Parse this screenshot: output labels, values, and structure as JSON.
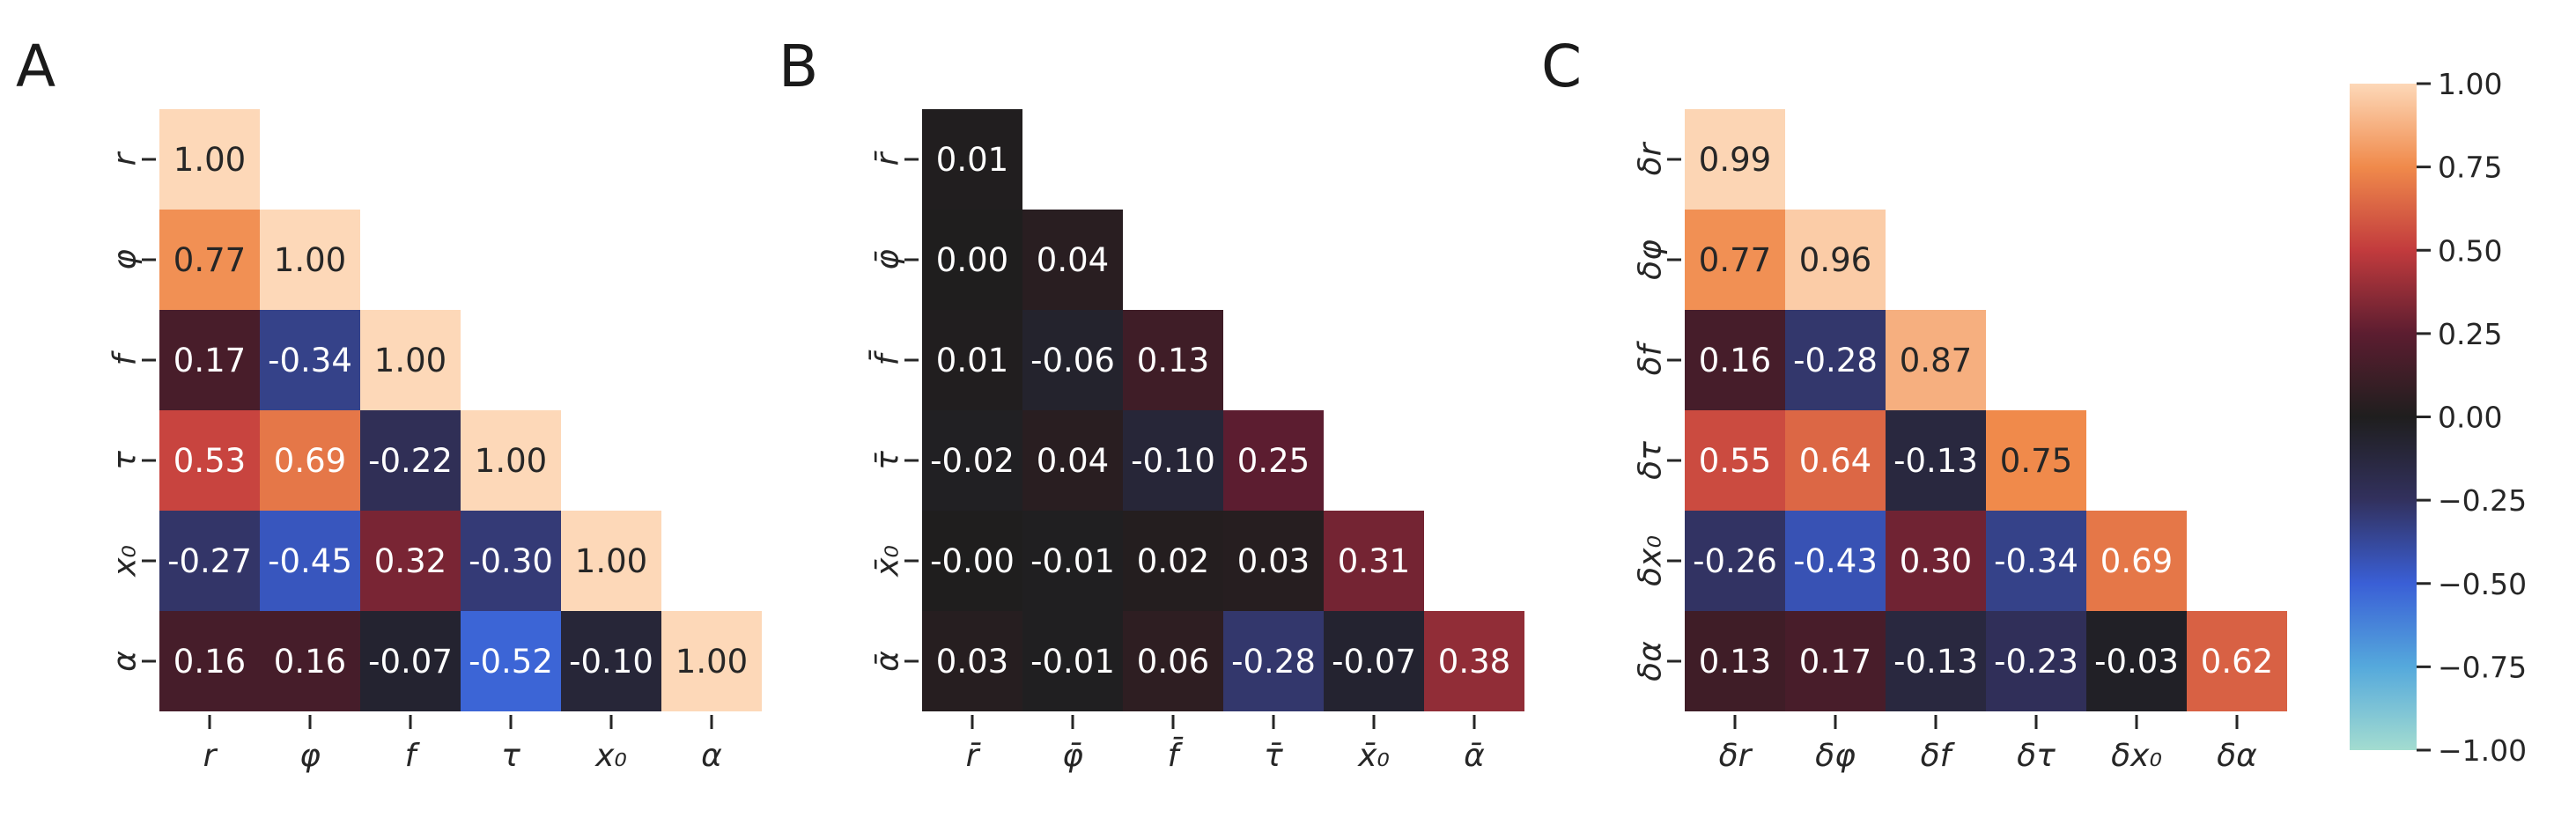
{
  "chart_data": [
    {
      "type": "heatmap",
      "panel_label": "A",
      "x_labels": [
        "r",
        "φ",
        "f",
        "τ",
        "x₀",
        "α"
      ],
      "y_labels": [
        "r",
        "φ",
        "f",
        "τ",
        "x₀",
        "α"
      ],
      "values": [
        [
          1.0
        ],
        [
          0.77,
          1.0
        ],
        [
          0.17,
          -0.34,
          1.0
        ],
        [
          0.53,
          0.69,
          -0.22,
          1.0
        ],
        [
          -0.27,
          -0.45,
          0.32,
          -0.3,
          1.0
        ],
        [
          0.16,
          0.16,
          -0.07,
          -0.52,
          -0.1,
          1.0
        ]
      ],
      "annotations": [
        [
          "1.00"
        ],
        [
          "0.77",
          "1.00"
        ],
        [
          "0.17",
          "-0.34",
          "1.00"
        ],
        [
          "0.53",
          "0.69",
          "-0.22",
          "1.00"
        ],
        [
          "-0.27",
          "-0.45",
          "0.32",
          "-0.30",
          "1.00"
        ],
        [
          "0.16",
          "0.16",
          "-0.07",
          "-0.52",
          "-0.10",
          "1.00"
        ]
      ],
      "mask": "upper-triangle"
    },
    {
      "type": "heatmap",
      "panel_label": "B",
      "x_labels": [
        "r̄",
        "φ̄",
        "f̄",
        "τ̄",
        "x̄₀",
        "ᾱ"
      ],
      "y_labels": [
        "r̄",
        "φ̄",
        "f̄",
        "τ̄",
        "x̄₀",
        "ᾱ"
      ],
      "values": [
        [
          0.01
        ],
        [
          0.0,
          0.04
        ],
        [
          0.01,
          -0.06,
          0.13
        ],
        [
          -0.02,
          0.04,
          -0.1,
          0.25
        ],
        [
          -0.0,
          -0.01,
          0.02,
          0.03,
          0.31
        ],
        [
          0.03,
          -0.01,
          0.06,
          -0.28,
          -0.07,
          0.38
        ]
      ],
      "annotations": [
        [
          "0.01"
        ],
        [
          "0.00",
          "0.04"
        ],
        [
          "0.01",
          "-0.06",
          "0.13"
        ],
        [
          "-0.02",
          "0.04",
          "-0.10",
          "0.25"
        ],
        [
          "-0.00",
          "-0.01",
          "0.02",
          "0.03",
          "0.31"
        ],
        [
          "0.03",
          "-0.01",
          "0.06",
          "-0.28",
          "-0.07",
          "0.38"
        ]
      ],
      "mask": "upper-triangle"
    },
    {
      "type": "heatmap",
      "panel_label": "C",
      "x_labels": [
        "δr",
        "δφ",
        "δf",
        "δτ",
        "δx₀",
        "δα"
      ],
      "y_labels": [
        "δr",
        "δφ",
        "δf",
        "δτ",
        "δx₀",
        "δα"
      ],
      "values": [
        [
          0.99
        ],
        [
          0.77,
          0.96
        ],
        [
          0.16,
          -0.28,
          0.87
        ],
        [
          0.55,
          0.64,
          -0.13,
          0.75
        ],
        [
          -0.26,
          -0.43,
          0.3,
          -0.34,
          0.69
        ],
        [
          0.13,
          0.17,
          -0.13,
          -0.23,
          -0.03,
          0.62
        ]
      ],
      "annotations": [
        [
          "0.99"
        ],
        [
          "0.77",
          "0.96"
        ],
        [
          "0.16",
          "-0.28",
          "0.87"
        ],
        [
          "0.55",
          "0.64",
          "-0.13",
          "0.75"
        ],
        [
          "-0.26",
          "-0.43",
          "0.30",
          "-0.34",
          "0.69"
        ],
        [
          "0.13",
          "0.17",
          "-0.13",
          "-0.23",
          "-0.03",
          "0.62"
        ]
      ],
      "mask": "upper-triangle"
    }
  ],
  "colorbar": {
    "colormap": "icefire",
    "vmin": -1.0,
    "vmax": 1.0,
    "ticks": [
      1.0,
      0.75,
      0.5,
      0.25,
      0.0,
      -0.25,
      -0.5,
      -0.75,
      -1.0
    ],
    "tick_labels": [
      "1.00",
      "0.75",
      "0.50",
      "0.25",
      "0.00",
      "−0.25",
      "−0.50",
      "−0.75",
      "−1.00"
    ]
  }
}
